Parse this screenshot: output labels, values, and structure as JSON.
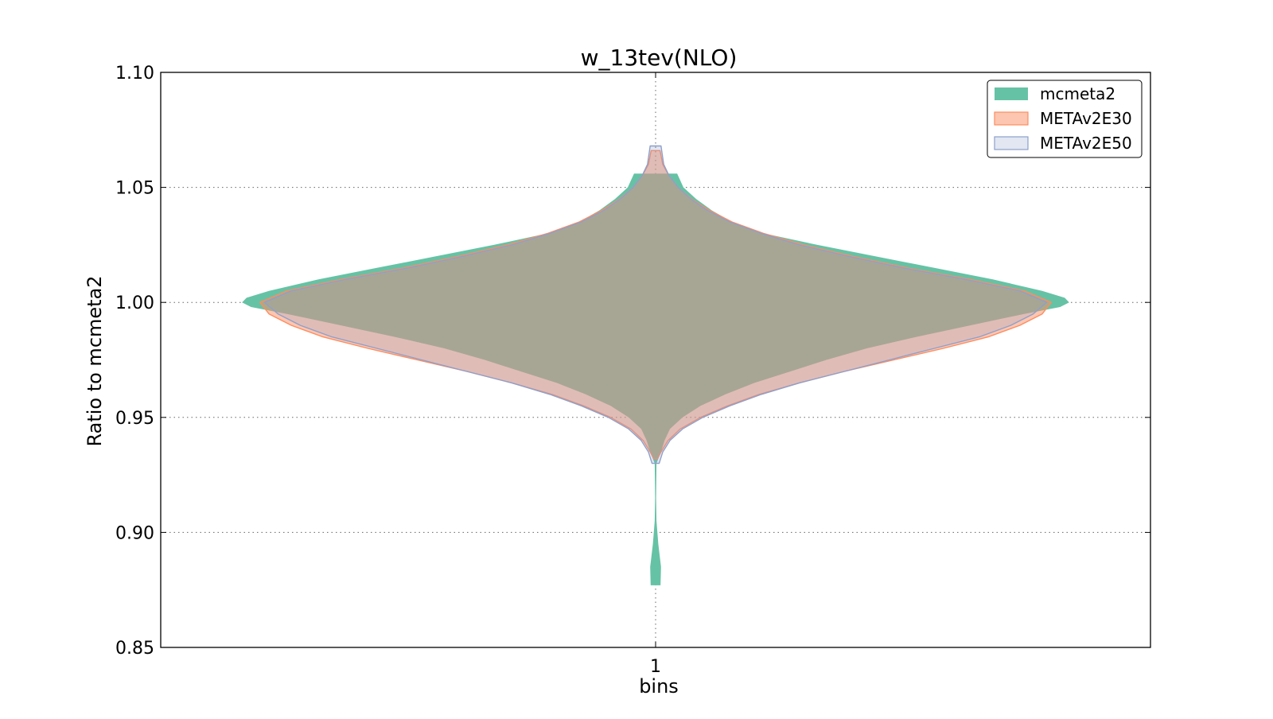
{
  "chart_data": {
    "type": "violin",
    "title": "w_13tev(NLO)",
    "xlabel": "bins",
    "ylabel": "Ratio to mcmeta2",
    "categories": [
      "1"
    ],
    "ylim": [
      0.85,
      1.1
    ],
    "yticks": [
      0.85,
      0.9,
      0.95,
      1.0,
      1.05,
      1.1
    ],
    "ytick_labels": [
      "0.85",
      "0.90",
      "0.95",
      "1.00",
      "1.05",
      "1.10"
    ],
    "grid": true,
    "legend_position": "top-right",
    "series": [
      {
        "name": "mcmeta2",
        "color": "#66c2a5",
        "fill_opacity": 1.0,
        "edge_color": "#66c2a5",
        "range": [
          0.877,
          1.056
        ],
        "profile": [
          {
            "y": 0.877,
            "w": 0.011
          },
          {
            "y": 0.885,
            "w": 0.012
          },
          {
            "y": 0.895,
            "w": 0.006
          },
          {
            "y": 0.905,
            "w": 0.002
          },
          {
            "y": 0.915,
            "w": 0.001
          },
          {
            "y": 0.93,
            "w": 0.002
          },
          {
            "y": 0.935,
            "w": 0.012
          },
          {
            "y": 0.94,
            "w": 0.02
          },
          {
            "y": 0.945,
            "w": 0.032
          },
          {
            "y": 0.95,
            "w": 0.06
          },
          {
            "y": 0.955,
            "w": 0.1
          },
          {
            "y": 0.96,
            "w": 0.155
          },
          {
            "y": 0.965,
            "w": 0.22
          },
          {
            "y": 0.97,
            "w": 0.3
          },
          {
            "y": 0.975,
            "w": 0.38
          },
          {
            "y": 0.98,
            "w": 0.47
          },
          {
            "y": 0.985,
            "w": 0.58
          },
          {
            "y": 0.99,
            "w": 0.7
          },
          {
            "y": 0.995,
            "w": 0.82
          },
          {
            "y": 0.998,
            "w": 0.9
          },
          {
            "y": 1.0,
            "w": 0.92
          },
          {
            "y": 1.002,
            "w": 0.91
          },
          {
            "y": 1.005,
            "w": 0.86
          },
          {
            "y": 1.01,
            "w": 0.75
          },
          {
            "y": 1.015,
            "w": 0.62
          },
          {
            "y": 1.02,
            "w": 0.49
          },
          {
            "y": 1.025,
            "w": 0.36
          },
          {
            "y": 1.03,
            "w": 0.24
          },
          {
            "y": 1.035,
            "w": 0.17
          },
          {
            "y": 1.04,
            "w": 0.125
          },
          {
            "y": 1.045,
            "w": 0.09
          },
          {
            "y": 1.05,
            "w": 0.062
          },
          {
            "y": 1.056,
            "w": 0.048
          }
        ]
      },
      {
        "name": "METAv2E30",
        "color": "#fc8d62",
        "fill_opacity": 0.5,
        "edge_color": "#fc8d62",
        "range": [
          0.932,
          1.066
        ],
        "profile": [
          {
            "y": 0.932,
            "w": 0.004
          },
          {
            "y": 0.935,
            "w": 0.012
          },
          {
            "y": 0.94,
            "w": 0.028
          },
          {
            "y": 0.945,
            "w": 0.055
          },
          {
            "y": 0.95,
            "w": 0.1
          },
          {
            "y": 0.955,
            "w": 0.16
          },
          {
            "y": 0.96,
            "w": 0.23
          },
          {
            "y": 0.965,
            "w": 0.32
          },
          {
            "y": 0.97,
            "w": 0.42
          },
          {
            "y": 0.975,
            "w": 0.53
          },
          {
            "y": 0.98,
            "w": 0.64
          },
          {
            "y": 0.985,
            "w": 0.74
          },
          {
            "y": 0.99,
            "w": 0.81
          },
          {
            "y": 0.995,
            "w": 0.86
          },
          {
            "y": 1.0,
            "w": 0.88
          },
          {
            "y": 1.005,
            "w": 0.82
          },
          {
            "y": 1.01,
            "w": 0.7
          },
          {
            "y": 1.015,
            "w": 0.56
          },
          {
            "y": 1.02,
            "w": 0.44
          },
          {
            "y": 1.025,
            "w": 0.33
          },
          {
            "y": 1.03,
            "w": 0.24
          },
          {
            "y": 1.035,
            "w": 0.17
          },
          {
            "y": 1.04,
            "w": 0.12
          },
          {
            "y": 1.045,
            "w": 0.08
          },
          {
            "y": 1.05,
            "w": 0.05
          },
          {
            "y": 1.055,
            "w": 0.03
          },
          {
            "y": 1.06,
            "w": 0.016
          },
          {
            "y": 1.066,
            "w": 0.01
          }
        ]
      },
      {
        "name": "METAv2E50",
        "color": "#8da0cb",
        "fill_opacity": 0.25,
        "edge_color": "#8da0cb",
        "range": [
          0.93,
          1.068
        ],
        "profile": [
          {
            "y": 0.93,
            "w": 0.008
          },
          {
            "y": 0.935,
            "w": 0.016
          },
          {
            "y": 0.94,
            "w": 0.032
          },
          {
            "y": 0.945,
            "w": 0.06
          },
          {
            "y": 0.95,
            "w": 0.105
          },
          {
            "y": 0.955,
            "w": 0.165
          },
          {
            "y": 0.96,
            "w": 0.235
          },
          {
            "y": 0.965,
            "w": 0.32
          },
          {
            "y": 0.97,
            "w": 0.42
          },
          {
            "y": 0.975,
            "w": 0.52
          },
          {
            "y": 0.98,
            "w": 0.62
          },
          {
            "y": 0.985,
            "w": 0.72
          },
          {
            "y": 0.99,
            "w": 0.79
          },
          {
            "y": 0.995,
            "w": 0.84
          },
          {
            "y": 1.0,
            "w": 0.87
          },
          {
            "y": 1.005,
            "w": 0.81
          },
          {
            "y": 1.01,
            "w": 0.69
          },
          {
            "y": 1.015,
            "w": 0.55
          },
          {
            "y": 1.02,
            "w": 0.43
          },
          {
            "y": 1.025,
            "w": 0.32
          },
          {
            "y": 1.03,
            "w": 0.235
          },
          {
            "y": 1.035,
            "w": 0.165
          },
          {
            "y": 1.04,
            "w": 0.115
          },
          {
            "y": 1.045,
            "w": 0.078
          },
          {
            "y": 1.05,
            "w": 0.05
          },
          {
            "y": 1.055,
            "w": 0.03
          },
          {
            "y": 1.06,
            "w": 0.018
          },
          {
            "y": 1.068,
            "w": 0.012
          }
        ]
      }
    ]
  }
}
